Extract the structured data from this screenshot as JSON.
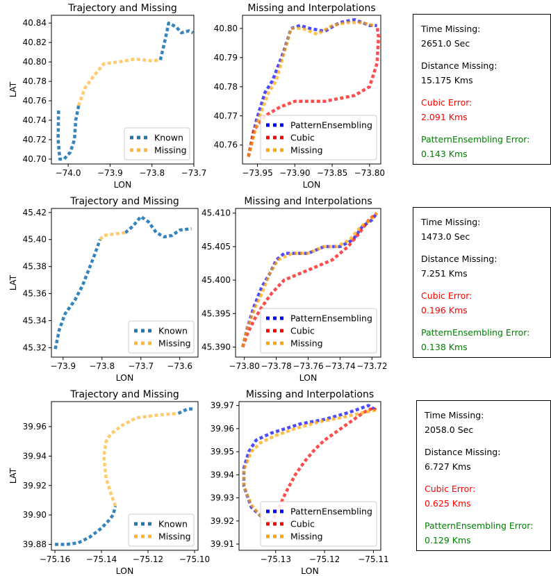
{
  "colors": {
    "known": "#1f77b4",
    "missing": "#ffb52e",
    "pattern": "#0000ff",
    "cubic": "#ff0000",
    "missing_interp": "#ffa500",
    "cubic_error": "#ff0000",
    "pattern_error": "#008000"
  },
  "rows": [
    {
      "traj_title": "Trajectory and Missing",
      "interp_title": "Missing and Interpolations",
      "info": {
        "time_label": "Time Missing:",
        "time_value": "2651.0 Sec",
        "dist_label": "Distance Missing:",
        "dist_value": "15.175 Kms",
        "cubic_label": "Cubic Error:",
        "cubic_value": "2.091 Kms",
        "pattern_label": "PatternEnsembling Error:",
        "pattern_value": "0.143 Kms"
      }
    },
    {
      "traj_title": "Trajectory and Missing",
      "interp_title": "Missing and Interpolations",
      "info": {
        "time_label": "Time Missing:",
        "time_value": "1473.0 Sec",
        "dist_label": "Distance Missing:",
        "dist_value": "7.251 Kms",
        "cubic_label": "Cubic Error:",
        "cubic_value": "0.196 Kms",
        "pattern_label": "PatternEnsembling Error:",
        "pattern_value": "0.138 Kms"
      }
    },
    {
      "traj_title": "Trajectory and Missing",
      "interp_title": "Missing and Interpolations",
      "info": {
        "time_label": "Time Missing:",
        "time_value": "2058.0 Sec",
        "dist_label": "Distance Missing:",
        "dist_value": "6.727 Kms",
        "cubic_label": "Cubic Error:",
        "cubic_value": "0.625 Kms",
        "pattern_label": "PatternEnsembling Error:",
        "pattern_value": "0.129 Kms"
      }
    }
  ],
  "chart_data": [
    {
      "type": "line",
      "title": "Trajectory and Missing",
      "xlabel": "LON",
      "ylabel": "LAT",
      "xlim": [
        -74.04,
        -73.7
      ],
      "ylim": [
        40.695,
        40.848
      ],
      "xticks": [
        -74.0,
        -73.9,
        -73.8,
        -73.7
      ],
      "xtick_labels": [
        "−74.0",
        "−73.9",
        "−73.8",
        "−73.7"
      ],
      "yticks": [
        40.7,
        40.72,
        40.74,
        40.76,
        40.78,
        40.8,
        40.82,
        40.84
      ],
      "ytick_labels": [
        "40.70",
        "40.72",
        "40.74",
        "40.76",
        "40.78",
        "40.80",
        "40.82",
        "40.84"
      ],
      "legend": "lower-right",
      "series": [
        {
          "name": "Known",
          "color_key": "known",
          "x": [
            -74.023,
            -74.024,
            -74.02,
            -74.01,
            -73.995,
            -73.985,
            -73.982,
            -73.975
          ],
          "y": [
            40.75,
            40.72,
            40.7,
            40.7,
            40.707,
            40.72,
            40.74,
            40.755
          ]
        },
        {
          "name": "Known",
          "color_key": "known",
          "legend": false,
          "x": [
            -73.78,
            -73.77,
            -73.76,
            -73.742,
            -73.73,
            -73.712,
            -73.702
          ],
          "y": [
            40.802,
            40.82,
            40.84,
            40.836,
            40.83,
            40.832,
            40.83
          ]
        },
        {
          "name": "Missing",
          "color_key": "missing",
          "x": [
            -73.975,
            -73.96,
            -73.94,
            -73.915,
            -73.88,
            -73.84,
            -73.8,
            -73.782
          ],
          "y": [
            40.755,
            40.773,
            40.785,
            40.798,
            40.8,
            40.803,
            40.801,
            40.802
          ]
        }
      ]
    },
    {
      "type": "line",
      "title": "Missing and Interpolations",
      "xlabel": "LON",
      "ylabel": "",
      "xlim": [
        -73.97,
        -73.785
      ],
      "ylim": [
        40.7535,
        40.8045
      ],
      "xticks": [
        -73.95,
        -73.9,
        -73.85,
        -73.8
      ],
      "xtick_labels": [
        "−73.95",
        "−73.90",
        "−73.85",
        "−73.80"
      ],
      "yticks": [
        40.76,
        40.77,
        40.78,
        40.79,
        40.8
      ],
      "ytick_labels": [
        "40.76",
        "40.77",
        "40.78",
        "40.79",
        "40.80"
      ],
      "legend": "lower-right",
      "series": [
        {
          "name": "PatternEnsembling",
          "color_key": "pattern",
          "x": [
            -73.962,
            -73.952,
            -73.94,
            -73.93,
            -73.915,
            -73.905,
            -73.893,
            -73.88,
            -73.86,
            -73.84,
            -73.82,
            -73.8,
            -73.79
          ],
          "y": [
            40.756,
            40.768,
            40.778,
            40.782,
            40.792,
            40.8,
            40.801,
            40.8,
            40.799,
            40.802,
            40.803,
            40.801,
            40.801
          ]
        },
        {
          "name": "Cubic",
          "color_key": "cubic",
          "x": [
            -73.962,
            -73.955,
            -73.94,
            -73.92,
            -73.9,
            -73.88,
            -73.86,
            -73.84,
            -73.82,
            -73.8,
            -73.79,
            -73.788,
            -73.79
          ],
          "y": [
            40.756,
            40.765,
            40.77,
            40.773,
            40.775,
            40.775,
            40.775,
            40.776,
            40.777,
            40.78,
            40.788,
            40.797,
            40.801
          ]
        },
        {
          "name": "Missing",
          "color_key": "missing_interp",
          "x": [
            -73.962,
            -73.95,
            -73.935,
            -73.925,
            -73.915,
            -73.905,
            -73.89,
            -73.87,
            -73.85,
            -73.83,
            -73.81,
            -73.795
          ],
          "y": [
            40.756,
            40.768,
            40.778,
            40.782,
            40.791,
            40.8,
            40.8,
            40.798,
            40.801,
            40.802,
            40.802,
            40.801
          ]
        }
      ]
    },
    {
      "type": "line",
      "title": "Trajectory and Missing",
      "xlabel": "LON",
      "ylabel": "LAT",
      "xlim": [
        -73.93,
        -73.553
      ],
      "ylim": [
        45.313,
        45.423
      ],
      "xticks": [
        -73.9,
        -73.8,
        -73.7,
        -73.6
      ],
      "xtick_labels": [
        "−73.9",
        "−73.8",
        "−73.7",
        "−73.6"
      ],
      "yticks": [
        45.32,
        45.34,
        45.36,
        45.38,
        45.4,
        45.42
      ],
      "ytick_labels": [
        "45.32",
        "45.34",
        "45.36",
        "45.38",
        "45.40",
        "45.42"
      ],
      "legend": "lower-right",
      "series": [
        {
          "name": "Known",
          "color_key": "known",
          "x": [
            -73.92,
            -73.91,
            -73.895,
            -73.87,
            -73.85,
            -73.835,
            -73.82,
            -73.805
          ],
          "y": [
            45.319,
            45.333,
            45.345,
            45.355,
            45.366,
            45.377,
            45.388,
            45.4
          ]
        },
        {
          "name": "Known",
          "color_key": "known",
          "legend": false,
          "x": [
            -73.74,
            -73.72,
            -73.7,
            -73.68,
            -73.66,
            -73.64,
            -73.62,
            -73.6,
            -73.57
          ],
          "y": [
            45.405,
            45.41,
            45.417,
            45.413,
            45.405,
            45.402,
            45.403,
            45.407,
            45.408
          ]
        },
        {
          "name": "Missing",
          "color_key": "missing",
          "x": [
            -73.805,
            -73.795,
            -73.77,
            -73.745,
            -73.74
          ],
          "y": [
            45.4,
            45.403,
            45.404,
            45.405,
            45.405
          ]
        }
      ]
    },
    {
      "type": "line",
      "title": "Missing and Interpolations",
      "xlabel": "LON",
      "ylabel": "",
      "xlim": [
        -73.8055,
        -73.7145
      ],
      "ylim": [
        45.3885,
        45.4107
      ],
      "xticks": [
        -73.8,
        -73.78,
        -73.76,
        -73.74,
        -73.72
      ],
      "xtick_labels": [
        "−73.80",
        "−73.78",
        "−73.76",
        "−73.74",
        "−73.72"
      ],
      "yticks": [
        45.39,
        45.395,
        45.4,
        45.405,
        45.41
      ],
      "ytick_labels": [
        "45.390",
        "45.395",
        "45.400",
        "45.405",
        "45.410"
      ],
      "legend": "lower-right",
      "series": [
        {
          "name": "PatternEnsembling",
          "color_key": "pattern",
          "x": [
            -73.801,
            -73.798,
            -73.794,
            -73.789,
            -73.784,
            -73.78,
            -73.775,
            -73.77,
            -73.76,
            -73.75,
            -73.745,
            -73.74,
            -73.732,
            -73.726,
            -73.72,
            -73.717
          ],
          "y": [
            45.39,
            45.393,
            45.396,
            45.399,
            45.401,
            45.403,
            45.404,
            45.404,
            45.404,
            45.405,
            45.405,
            45.405,
            45.406,
            45.408,
            45.409,
            45.41
          ]
        },
        {
          "name": "Cubic",
          "color_key": "cubic",
          "x": [
            -73.801,
            -73.798,
            -73.794,
            -73.789,
            -73.783,
            -73.775,
            -73.765,
            -73.755,
            -73.745,
            -73.735,
            -73.728,
            -73.722,
            -73.717
          ],
          "y": [
            45.39,
            45.392,
            45.394,
            45.396,
            45.398,
            45.4,
            45.401,
            45.402,
            45.403,
            45.405,
            45.407,
            45.409,
            45.41
          ]
        },
        {
          "name": "Missing",
          "color_key": "missing_interp",
          "x": [
            -73.801,
            -73.798,
            -73.793,
            -73.789,
            -73.784,
            -73.779,
            -73.77,
            -73.76,
            -73.75,
            -73.742,
            -73.734,
            -73.727,
            -73.721,
            -73.717
          ],
          "y": [
            45.39,
            45.393,
            45.396,
            45.398,
            45.401,
            45.403,
            45.404,
            45.404,
            45.405,
            45.405,
            45.406,
            45.408,
            45.409,
            45.41
          ]
        }
      ]
    },
    {
      "type": "line",
      "title": "Trajectory and Missing",
      "xlabel": "LON",
      "ylabel": "LAT",
      "xlim": [
        -75.1615,
        -75.0985
      ],
      "ylim": [
        39.876,
        39.977
      ],
      "xticks": [
        -75.16,
        -75.14,
        -75.12,
        -75.1
      ],
      "xtick_labels": [
        "−75.16",
        "−75.14",
        "−75.12",
        "−75.10"
      ],
      "yticks": [
        39.88,
        39.9,
        39.92,
        39.94,
        39.96
      ],
      "ytick_labels": [
        "39.88",
        "39.90",
        "39.92",
        "39.94",
        "39.96"
      ],
      "legend": "lower-right",
      "series": [
        {
          "name": "Known",
          "color_key": "known",
          "x": [
            -75.16,
            -75.155,
            -75.15,
            -75.145,
            -75.14,
            -75.137,
            -75.135,
            -75.134
          ],
          "y": [
            39.88,
            39.88,
            39.881,
            39.885,
            39.891,
            39.896,
            39.9,
            39.906
          ]
        },
        {
          "name": "Known",
          "color_key": "known",
          "legend": false,
          "x": [
            -75.107,
            -75.103,
            -75.1
          ],
          "y": [
            39.969,
            39.972,
            39.972
          ]
        },
        {
          "name": "Missing",
          "color_key": "missing",
          "x": [
            -75.134,
            -75.136,
            -75.138,
            -75.139,
            -75.138,
            -75.136,
            -75.131,
            -75.125,
            -75.115,
            -75.107
          ],
          "y": [
            39.906,
            39.915,
            39.925,
            39.94,
            39.95,
            39.955,
            39.961,
            39.966,
            39.968,
            39.969
          ]
        }
      ]
    },
    {
      "type": "line",
      "title": "Missing and Interpolations",
      "xlabel": "LON",
      "ylabel": "",
      "xlim": [
        -75.1375,
        -75.1085
      ],
      "ylim": [
        39.9073,
        39.9717
      ],
      "xticks": [
        -75.13,
        -75.12,
        -75.11
      ],
      "xtick_labels": [
        "−75.13",
        "−75.12",
        "−75.11"
      ],
      "yticks": [
        39.91,
        39.92,
        39.93,
        39.94,
        39.95,
        39.96,
        39.97
      ],
      "ytick_labels": [
        "39.91",
        "39.92",
        "39.93",
        "39.94",
        "39.95",
        "39.96",
        "39.97"
      ],
      "legend": "lower-right",
      "series": [
        {
          "name": "PatternEnsembling",
          "color_key": "pattern",
          "x": [
            -75.131,
            -75.133,
            -75.135,
            -75.1365,
            -75.1365,
            -75.1355,
            -75.134,
            -75.131,
            -75.128,
            -75.125,
            -75.12,
            -75.115,
            -75.111,
            -75.1095
          ],
          "y": [
            39.919,
            39.922,
            39.926,
            39.935,
            39.943,
            39.95,
            39.955,
            39.958,
            39.96,
            39.962,
            39.964,
            39.967,
            39.97,
            39.968
          ]
        },
        {
          "name": "Cubic",
          "color_key": "cubic",
          "x": [
            -75.131,
            -75.1295,
            -75.128,
            -75.126,
            -75.124,
            -75.122,
            -75.12,
            -75.118,
            -75.116,
            -75.114,
            -75.112,
            -75.11,
            -75.1095
          ],
          "y": [
            39.919,
            39.925,
            39.932,
            39.94,
            39.946,
            39.951,
            39.955,
            39.958,
            39.961,
            39.964,
            39.967,
            39.969,
            39.968
          ]
        },
        {
          "name": "Missing",
          "color_key": "missing_interp",
          "x": [
            -75.131,
            -75.133,
            -75.135,
            -75.1365,
            -75.1365,
            -75.135,
            -75.133,
            -75.13,
            -75.126,
            -75.121,
            -75.116,
            -75.112,
            -75.1095
          ],
          "y": [
            39.919,
            39.922,
            39.927,
            39.935,
            39.942,
            39.95,
            39.954,
            39.957,
            39.96,
            39.963,
            39.965,
            39.967,
            39.968
          ]
        }
      ]
    }
  ]
}
